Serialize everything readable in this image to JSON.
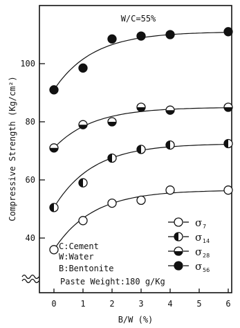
{
  "chart_data": {
    "type": "line",
    "title": "W/C=55%",
    "xlabel": "B/W (%)",
    "ylabel": "Compressive Strength (Kg/cm²)",
    "x_ticks": [
      "0",
      "1",
      "2",
      "3",
      "4",
      "5",
      "6"
    ],
    "y_ticks": [
      "40",
      "60",
      "80",
      "100"
    ],
    "x_axis": {
      "min": -0.5,
      "max": 6.5
    },
    "y_axis": {
      "min": 28,
      "max": 117,
      "axis_break": true
    },
    "grid": false,
    "legend_position": "bottom-right",
    "series": [
      {
        "name": "σ",
        "subscript": "7",
        "marker": "open",
        "x": [
          0,
          1,
          2,
          3,
          4,
          6
        ],
        "y": [
          36,
          46,
          52,
          53,
          56.5,
          56.5
        ]
      },
      {
        "name": "σ",
        "subscript": "14",
        "marker": "half-left",
        "x": [
          0,
          1,
          2,
          3,
          4,
          6
        ],
        "y": [
          50.5,
          59,
          67.5,
          70.5,
          72,
          72.5
        ]
      },
      {
        "name": "σ",
        "subscript": "28",
        "marker": "half-bottom",
        "x": [
          0,
          1,
          2,
          3,
          4,
          6
        ],
        "y": [
          71,
          79,
          80,
          85,
          84,
          85
        ]
      },
      {
        "name": "σ",
        "subscript": "56",
        "marker": "filled",
        "x": [
          0,
          1,
          2,
          3,
          4,
          6
        ],
        "y": [
          91,
          98.5,
          108.5,
          109.5,
          110,
          111
        ]
      }
    ],
    "annotations": [
      "C:Cement",
      "W:Water",
      "B:Bentonite",
      "Paste Weight:180 g/Kg"
    ]
  }
}
